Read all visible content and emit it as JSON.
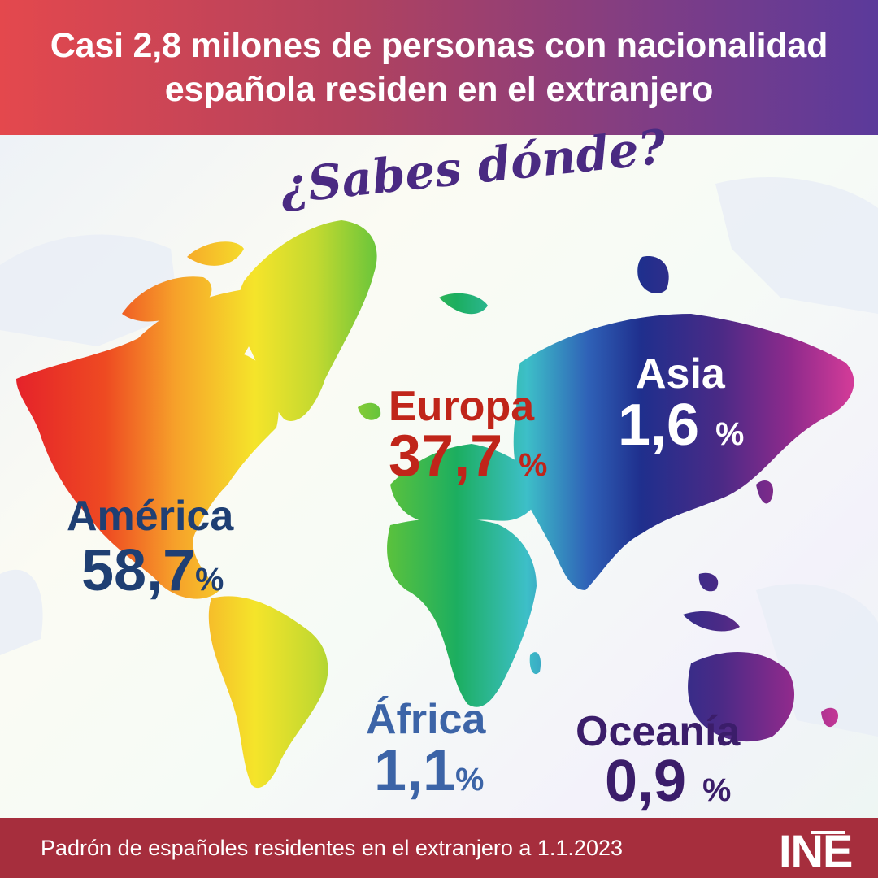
{
  "header": {
    "title_line1": "Casi 2,8 milones de personas con nacionalidad",
    "title_line2": "española residen en el extranjero"
  },
  "tagline": "¿Sabes dónde?",
  "regions": {
    "america": {
      "name": "América",
      "value": "58,7",
      "pct": "%"
    },
    "europa": {
      "name": "Europa",
      "value": "37,7",
      "pct": "%"
    },
    "asia": {
      "name": "Asia",
      "value": "1,6",
      "pct": "%"
    },
    "africa": {
      "name": "África",
      "value": "1,1",
      "pct": "%"
    },
    "oceania": {
      "name": "Oceanía",
      "value": "0,9",
      "pct": "%"
    }
  },
  "colors": {
    "america_text": "#1f3f73",
    "europa_text": "#c0251a",
    "asia_text": "#ffffff",
    "africa_text": "#3c64a7",
    "oceania_text": "#3b1d6a",
    "footer_bg": "#a62e3d"
  },
  "footer": {
    "source": "Padrón de españoles residentes en el extranjero a 1.1.2023",
    "logo": "INE"
  }
}
